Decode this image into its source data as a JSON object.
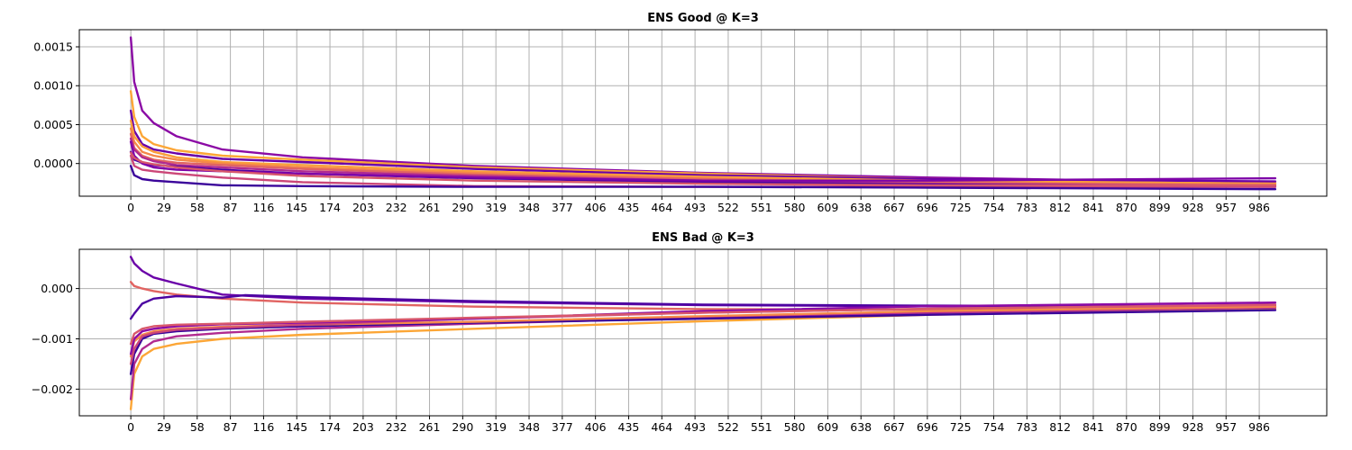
{
  "chart_data": [
    {
      "type": "line",
      "title": "ENS Good @ K=3",
      "xlabel": "",
      "ylabel": "",
      "xlim": [
        -45,
        1045
      ],
      "ylim": [
        -0.00042,
        0.00172
      ],
      "grid": true,
      "x_ticks": [
        0,
        29,
        58,
        87,
        116,
        145,
        174,
        203,
        232,
        261,
        290,
        319,
        348,
        377,
        406,
        435,
        464,
        493,
        522,
        551,
        580,
        609,
        638,
        667,
        696,
        725,
        754,
        783,
        812,
        841,
        870,
        899,
        928,
        957,
        986
      ],
      "y_ticks": [
        0.0015,
        0.001,
        0.0005,
        0.0
      ],
      "y_tick_labels": [
        "0.0015",
        "0.0010",
        "0.0005",
        "0.0000"
      ],
      "series": [
        {
          "color": "#8b0aa5",
          "x": [
            0,
            3,
            10,
            20,
            40,
            80,
            150,
            300,
            500,
            700,
            1000
          ],
          "y": [
            0.00162,
            0.00105,
            0.00068,
            0.00052,
            0.00035,
            0.00018,
            8e-05,
            -3e-05,
            -0.00012,
            -0.00018,
            -0.00025
          ]
        },
        {
          "color": "#fca636",
          "x": [
            0,
            3,
            10,
            20,
            40,
            80,
            150,
            300,
            500,
            700,
            1000
          ],
          "y": [
            0.00093,
            0.0006,
            0.00035,
            0.00025,
            0.00017,
            0.0001,
            5e-05,
            -5e-05,
            -0.00013,
            -0.0002,
            -0.00025
          ]
        },
        {
          "color": "#6a00a8",
          "x": [
            0,
            3,
            10,
            20,
            40,
            80,
            150,
            300,
            500,
            700,
            1000
          ],
          "y": [
            0.00068,
            0.00042,
            0.00025,
            0.00018,
            0.00013,
            6e-05,
            2e-05,
            -7e-05,
            -0.00015,
            -0.0002,
            -0.00023
          ]
        },
        {
          "color": "#fb9f3a",
          "x": [
            0,
            3,
            10,
            20,
            40,
            80,
            150,
            300,
            500,
            700,
            1000
          ],
          "y": [
            0.00055,
            0.00035,
            0.00022,
            0.00015,
            8e-05,
            2e-05,
            -2e-05,
            -0.0001,
            -0.00017,
            -0.00022,
            -0.00026
          ]
        },
        {
          "color": "#f48849",
          "x": [
            0,
            3,
            10,
            20,
            40,
            80,
            150,
            300,
            500,
            700,
            1000
          ],
          "y": [
            0.00045,
            0.00028,
            0.00015,
            0.0001,
            5e-05,
            0.0,
            -5e-05,
            -0.00012,
            -0.00019,
            -0.00024,
            -0.00027
          ]
        },
        {
          "color": "#e16462",
          "x": [
            0,
            3,
            10,
            20,
            40,
            80,
            150,
            300,
            500,
            700,
            1000
          ],
          "y": [
            0.00038,
            0.0002,
            0.0001,
            5e-05,
            1e-05,
            -2e-05,
            -7e-05,
            -0.00014,
            -0.0002,
            -0.00025,
            -0.00028
          ]
        },
        {
          "color": "#b12a90",
          "x": [
            0,
            3,
            10,
            20,
            40,
            80,
            150,
            300,
            500,
            700,
            1000
          ],
          "y": [
            0.00032,
            0.00018,
            8e-05,
            3e-05,
            -2e-05,
            -5e-05,
            -0.0001,
            -0.00016,
            -0.00022,
            -0.00026,
            -0.00029
          ]
        },
        {
          "color": "#4c02a1",
          "x": [
            0,
            3,
            10,
            20,
            40,
            80,
            150,
            300,
            500,
            700,
            1000
          ],
          "y": [
            0.00015,
            5e-05,
            1e-05,
            -2e-05,
            -4e-05,
            -8e-05,
            -0.00013,
            -0.00019,
            -0.00024,
            -0.00027,
            -0.0003
          ]
        },
        {
          "color": "#cc4778",
          "x": [
            0,
            3,
            10,
            20,
            40,
            80,
            150,
            300,
            500,
            700,
            1000
          ],
          "y": [
            0.0001,
            -3e-05,
            -8e-05,
            -0.0001,
            -0.00013,
            -0.00018,
            -0.00024,
            -0.00029,
            -0.0003,
            -0.0003,
            -0.0003
          ]
        },
        {
          "color": "#3a049a",
          "x": [
            0,
            3,
            10,
            20,
            40,
            80,
            150,
            300,
            500,
            700,
            1000
          ],
          "y": [
            -3e-05,
            -0.00015,
            -0.0002,
            -0.00022,
            -0.00024,
            -0.00028,
            -0.00029,
            -0.0003,
            -0.0003,
            -0.00031,
            -0.00033
          ]
        },
        {
          "color": "#7e03a8",
          "x": [
            0,
            3,
            10,
            20,
            40,
            80,
            150,
            300,
            500,
            700,
            1000
          ],
          "y": [
            0.00028,
            0.0001,
            0.0,
            -5e-05,
            -8e-05,
            -0.0001,
            -0.00013,
            -0.00018,
            -0.00022,
            -0.00022,
            -0.00019
          ]
        },
        {
          "color": "#d8576b",
          "x": [
            0,
            3,
            10,
            20,
            40,
            80,
            150,
            300,
            500,
            700,
            1000
          ],
          "y": [
            0.00014,
            7e-05,
            2e-05,
            -1e-05,
            -5e-05,
            -0.0001,
            -0.00016,
            -0.00022,
            -0.00026,
            -0.00028,
            -0.00028
          ]
        }
      ]
    },
    {
      "type": "line",
      "title": "ENS Bad @ K=3",
      "xlabel": "",
      "ylabel": "",
      "xlim": [
        -45,
        1045
      ],
      "ylim": [
        -0.00253,
        0.00078
      ],
      "grid": true,
      "x_ticks": [
        0,
        29,
        58,
        87,
        116,
        145,
        174,
        203,
        232,
        261,
        290,
        319,
        348,
        377,
        406,
        435,
        464,
        493,
        522,
        551,
        580,
        609,
        638,
        667,
        696,
        725,
        754,
        783,
        812,
        841,
        870,
        899,
        928,
        957,
        986
      ],
      "y_ticks": [
        0.0,
        -0.001,
        -0.002
      ],
      "y_tick_labels": [
        "0.000",
        "−0.001",
        "−0.002"
      ],
      "series": [
        {
          "color": "#6a00a8",
          "x": [
            0,
            3,
            10,
            20,
            40,
            80,
            150,
            300,
            500,
            700,
            1000
          ],
          "y": [
            0.00063,
            0.0005,
            0.00035,
            0.00022,
            0.0001,
            -0.00012,
            -0.0002,
            -0.00027,
            -0.00033,
            -0.00035,
            -0.00036
          ]
        },
        {
          "color": "#e16462",
          "x": [
            0,
            3,
            10,
            20,
            40,
            80,
            150,
            300,
            500,
            700,
            1000
          ],
          "y": [
            0.00013,
            5e-05,
            0.0,
            -5e-05,
            -0.00012,
            -0.0002,
            -0.00028,
            -0.00036,
            -0.00041,
            -0.00042,
            -0.00042
          ]
        },
        {
          "color": "#4c02a1",
          "x": [
            0,
            3,
            10,
            20,
            40,
            80,
            100,
            150,
            300,
            500,
            700,
            1000
          ],
          "y": [
            -0.0006,
            -0.0005,
            -0.0003,
            -0.0002,
            -0.00015,
            -0.00018,
            -0.00013,
            -0.00017,
            -0.00025,
            -0.00032,
            -0.00034,
            -0.00035
          ]
        },
        {
          "color": "#fca636",
          "x": [
            0,
            3,
            10,
            20,
            40,
            80,
            150,
            300,
            500,
            700,
            1000
          ],
          "y": [
            -0.0024,
            -0.0017,
            -0.00135,
            -0.0012,
            -0.0011,
            -0.001,
            -0.00092,
            -0.0008,
            -0.00065,
            -0.00052,
            -0.0004
          ]
        },
        {
          "color": "#b12a90",
          "x": [
            0,
            3,
            10,
            20,
            40,
            80,
            150,
            300,
            500,
            700,
            1000
          ],
          "y": [
            -0.0022,
            -0.0015,
            -0.0012,
            -0.00105,
            -0.00095,
            -0.00088,
            -0.0008,
            -0.0007,
            -0.00058,
            -0.00048,
            -0.00038
          ]
        },
        {
          "color": "#3a049a",
          "x": [
            0,
            3,
            10,
            20,
            40,
            80,
            150,
            300,
            500,
            700,
            1000
          ],
          "y": [
            -0.0017,
            -0.0013,
            -0.001,
            -0.0009,
            -0.00085,
            -0.0008,
            -0.00075,
            -0.00068,
            -0.0006,
            -0.00052,
            -0.00043
          ]
        },
        {
          "color": "#f48849",
          "x": [
            0,
            3,
            10,
            20,
            40,
            80,
            150,
            300,
            500,
            700,
            1000
          ],
          "y": [
            -0.00135,
            -0.00105,
            -0.00092,
            -0.00085,
            -0.0008,
            -0.00076,
            -0.00072,
            -0.00066,
            -0.00055,
            -0.00045,
            -0.00036
          ]
        },
        {
          "color": "#cc4778",
          "x": [
            0,
            3,
            10,
            20,
            40,
            80,
            150,
            300,
            500,
            700,
            1000
          ],
          "y": [
            -0.0015,
            -0.0012,
            -0.00095,
            -0.00088,
            -0.00082,
            -0.00078,
            -0.00072,
            -0.0006,
            -0.00048,
            -0.0004,
            -0.00032
          ]
        },
        {
          "color": "#8b0aa5",
          "x": [
            0,
            3,
            10,
            20,
            40,
            80,
            150,
            300,
            500,
            700,
            1000
          ],
          "y": [
            -0.0013,
            -0.001,
            -0.00085,
            -0.0008,
            -0.00075,
            -0.00071,
            -0.00068,
            -0.0006,
            -0.00045,
            -0.00035,
            -0.00028
          ]
        },
        {
          "color": "#d8576b",
          "x": [
            0,
            3,
            10,
            20,
            40,
            80,
            150,
            300,
            500,
            700,
            1000
          ],
          "y": [
            -0.0011,
            -0.0009,
            -0.0008,
            -0.00075,
            -0.00072,
            -0.0007,
            -0.00066,
            -0.00058,
            -0.00048,
            -0.0004,
            -0.00033
          ]
        }
      ]
    }
  ]
}
